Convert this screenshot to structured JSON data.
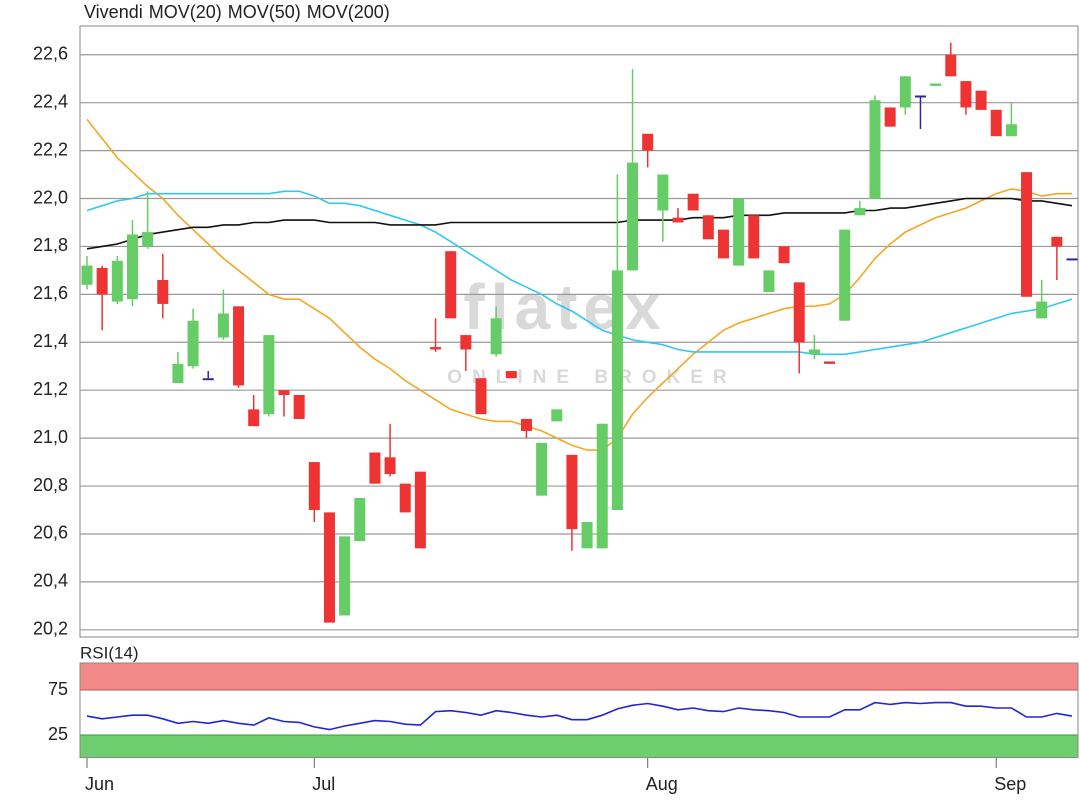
{
  "chart_data": [
    {
      "type": "candlestick",
      "name": "Vivendi",
      "color": "#f04828",
      "categories": [
        "Jun",
        null,
        null,
        null,
        null,
        null,
        null,
        null,
        null,
        null,
        null,
        null,
        null,
        null,
        null,
        "Jul",
        null,
        null,
        null,
        null,
        null,
        null,
        null,
        null,
        null,
        null,
        null,
        null,
        null,
        null,
        null,
        null,
        null,
        null,
        null,
        null,
        null,
        "Aug",
        null,
        null,
        null,
        null,
        null,
        null,
        null,
        null,
        null,
        null,
        null,
        null,
        null,
        null,
        null,
        null,
        null,
        null,
        null,
        null,
        null,
        null,
        "Sep",
        null,
        null,
        null,
        null,
        null
      ],
      "open": [
        21.64,
        21.71,
        21.57,
        21.58,
        21.8,
        21.66,
        21.23,
        21.3,
        21.25,
        21.42,
        21.55,
        21.12,
        21.1,
        21.2,
        21.18,
        20.9,
        20.69,
        20.26,
        20.57,
        20.94,
        20.92,
        20.81,
        20.86,
        21.38,
        21.78,
        21.43,
        21.25,
        21.35,
        21.28,
        21.08,
        20.76,
        21.07,
        20.93,
        20.54,
        20.54,
        20.7,
        21.7,
        22.27,
        21.95,
        21.92,
        22.02,
        21.93,
        21.87,
        21.72,
        21.93,
        21.61,
        21.8,
        21.65,
        21.35,
        21.32,
        21.49,
        21.93,
        22.0,
        22.38,
        22.38,
        22.43,
        22.47,
        22.6,
        22.49,
        22.45,
        22.37,
        22.26,
        22.11,
        21.5,
        21.84,
        21.75
      ],
      "high": [
        21.76,
        21.72,
        21.76,
        21.91,
        22.03,
        21.77,
        21.36,
        21.54,
        21.28,
        21.62,
        21.55,
        21.18,
        21.43,
        21.2,
        21.18,
        20.9,
        20.69,
        20.59,
        20.75,
        20.94,
        21.06,
        20.81,
        20.86,
        21.5,
        21.78,
        21.43,
        21.25,
        21.55,
        21.28,
        21.08,
        20.98,
        21.12,
        20.93,
        20.65,
        21.06,
        22.1,
        22.54,
        22.27,
        22.1,
        21.96,
        22.02,
        21.93,
        21.87,
        22.0,
        21.93,
        21.7,
        21.8,
        21.65,
        21.43,
        21.32,
        21.87,
        21.99,
        22.43,
        22.38,
        22.51,
        22.43,
        22.48,
        22.65,
        22.49,
        22.45,
        22.37,
        22.4,
        22.11,
        21.66,
        21.84,
        21.75
      ],
      "low": [
        21.62,
        21.45,
        21.56,
        21.55,
        21.79,
        21.5,
        21.23,
        21.29,
        21.25,
        21.41,
        21.21,
        21.05,
        21.09,
        21.09,
        21.08,
        20.65,
        20.24,
        20.26,
        20.57,
        20.81,
        20.84,
        20.69,
        20.54,
        21.36,
        21.5,
        21.28,
        21.1,
        21.34,
        21.25,
        21.0,
        20.76,
        21.07,
        20.53,
        20.54,
        20.54,
        20.7,
        21.7,
        22.13,
        21.82,
        21.9,
        21.95,
        21.83,
        21.75,
        21.72,
        21.75,
        21.61,
        21.73,
        21.27,
        21.33,
        21.31,
        21.49,
        21.93,
        22.0,
        22.3,
        22.35,
        22.29,
        22.47,
        22.51,
        22.35,
        22.37,
        22.26,
        22.26,
        21.59,
        21.5,
        21.66,
        21.75
      ],
      "close": [
        21.72,
        21.6,
        21.74,
        21.85,
        21.86,
        21.56,
        21.31,
        21.49,
        21.25,
        21.52,
        21.22,
        21.05,
        21.43,
        21.18,
        21.08,
        20.7,
        20.23,
        20.59,
        20.75,
        20.81,
        20.85,
        20.69,
        20.54,
        21.37,
        21.5,
        21.37,
        21.1,
        21.5,
        21.25,
        21.03,
        20.98,
        21.12,
        20.62,
        20.65,
        21.06,
        21.7,
        22.15,
        22.2,
        22.1,
        21.9,
        21.95,
        21.83,
        21.75,
        22.0,
        21.75,
        21.7,
        21.73,
        21.4,
        21.37,
        21.31,
        21.87,
        21.96,
        22.41,
        22.3,
        22.51,
        22.43,
        22.48,
        22.51,
        22.38,
        22.37,
        22.26,
        22.31,
        21.59,
        21.57,
        21.8,
        21.75
      ],
      "colors": {
        "up": "#66cc66",
        "down": "#ee3333",
        "flat": "#2a2aa0"
      },
      "series": [
        {
          "name": "MOV(20)",
          "color": "#f5a623",
          "values": [
            22.33,
            22.25,
            22.17,
            22.11,
            22.05,
            22.0,
            21.93,
            21.87,
            21.81,
            21.75,
            21.7,
            21.65,
            21.6,
            21.58,
            21.58,
            21.54,
            21.5,
            21.44,
            21.38,
            21.33,
            21.29,
            21.24,
            21.2,
            21.16,
            21.12,
            21.1,
            21.08,
            21.07,
            21.07,
            21.05,
            21.03,
            21.0,
            20.97,
            20.95,
            20.95,
            21.0,
            21.1,
            21.17,
            21.23,
            21.29,
            21.35,
            21.4,
            21.45,
            21.48,
            21.5,
            21.52,
            21.54,
            21.55,
            21.55,
            21.56,
            21.6,
            21.67,
            21.75,
            21.81,
            21.86,
            21.89,
            21.92,
            21.94,
            21.96,
            21.99,
            22.02,
            22.04,
            22.03,
            22.01,
            22.02,
            22.02
          ]
        },
        {
          "name": "MOV(50)",
          "color": "#30c8f0",
          "values": [
            21.95,
            21.97,
            21.99,
            22.0,
            22.02,
            22.02,
            22.02,
            22.02,
            22.02,
            22.02,
            22.02,
            22.02,
            22.02,
            22.03,
            22.03,
            22.01,
            21.98,
            21.98,
            21.97,
            21.95,
            21.93,
            21.91,
            21.89,
            21.86,
            21.82,
            21.78,
            21.74,
            21.7,
            21.66,
            21.63,
            21.6,
            21.56,
            21.53,
            21.49,
            21.45,
            21.43,
            21.41,
            21.4,
            21.39,
            21.37,
            21.36,
            21.36,
            21.36,
            21.36,
            21.36,
            21.36,
            21.36,
            21.36,
            21.35,
            21.35,
            21.35,
            21.36,
            21.37,
            21.38,
            21.39,
            21.4,
            21.42,
            21.44,
            21.46,
            21.48,
            21.5,
            21.52,
            21.53,
            21.54,
            21.56,
            21.58
          ]
        },
        {
          "name": "MOV(200)",
          "color": "#111111",
          "values": [
            21.79,
            21.8,
            21.81,
            21.83,
            21.85,
            21.86,
            21.87,
            21.88,
            21.88,
            21.89,
            21.89,
            21.9,
            21.9,
            21.91,
            21.91,
            21.91,
            21.9,
            21.9,
            21.9,
            21.9,
            21.89,
            21.89,
            21.89,
            21.89,
            21.9,
            21.9,
            21.9,
            21.9,
            21.9,
            21.9,
            21.9,
            21.9,
            21.9,
            21.9,
            21.9,
            21.9,
            21.91,
            21.91,
            21.91,
            21.91,
            21.92,
            21.92,
            21.92,
            21.93,
            21.93,
            21.93,
            21.94,
            21.94,
            21.94,
            21.94,
            21.94,
            21.95,
            21.95,
            21.96,
            21.96,
            21.97,
            21.98,
            21.99,
            22.0,
            22.0,
            22.0,
            22.0,
            21.99,
            21.99,
            21.98,
            21.97
          ]
        }
      ],
      "ylim": [
        20.17,
        22.72
      ],
      "yticks": [
        {
          "value": 20.2,
          "label": "20,2"
        },
        {
          "value": 20.4,
          "label": "20,4"
        },
        {
          "value": 20.6,
          "label": "20,6"
        },
        {
          "value": 20.8,
          "label": "20,8"
        },
        {
          "value": 21.0,
          "label": "21,0"
        },
        {
          "value": 21.2,
          "label": "21,2"
        },
        {
          "value": 21.4,
          "label": "21,4"
        },
        {
          "value": 21.6,
          "label": "21,6"
        },
        {
          "value": 21.8,
          "label": "21,8"
        },
        {
          "value": 22.0,
          "label": "22,0"
        },
        {
          "value": 22.2,
          "label": "22,2"
        },
        {
          "value": 22.4,
          "label": "22,4"
        },
        {
          "value": 22.6,
          "label": "22,6"
        }
      ],
      "grid": true,
      "watermark": {
        "logo": "flatex",
        "tagline": "ONLINE BROKER"
      }
    },
    {
      "type": "line",
      "title": "RSI(14)",
      "color": "#2323d8",
      "values": [
        46,
        43,
        45,
        47,
        47,
        43,
        38,
        40,
        38,
        41,
        38,
        36,
        44,
        40,
        39,
        34,
        31,
        35,
        38,
        41,
        40,
        37,
        36,
        51,
        52,
        50,
        47,
        52,
        50,
        47,
        45,
        47,
        42,
        42,
        47,
        54,
        58,
        60,
        57,
        53,
        55,
        52,
        51,
        55,
        53,
        52,
        50,
        45,
        45,
        45,
        53,
        53,
        61,
        59,
        61,
        60,
        61,
        61,
        57,
        57,
        55,
        55,
        45,
        45,
        49,
        46
      ],
      "ylim": [
        0,
        105
      ],
      "yticks": [
        25,
        75
      ],
      "upper_band_color": "#f28a8a",
      "lower_band_color": "#6fcf6f"
    }
  ]
}
